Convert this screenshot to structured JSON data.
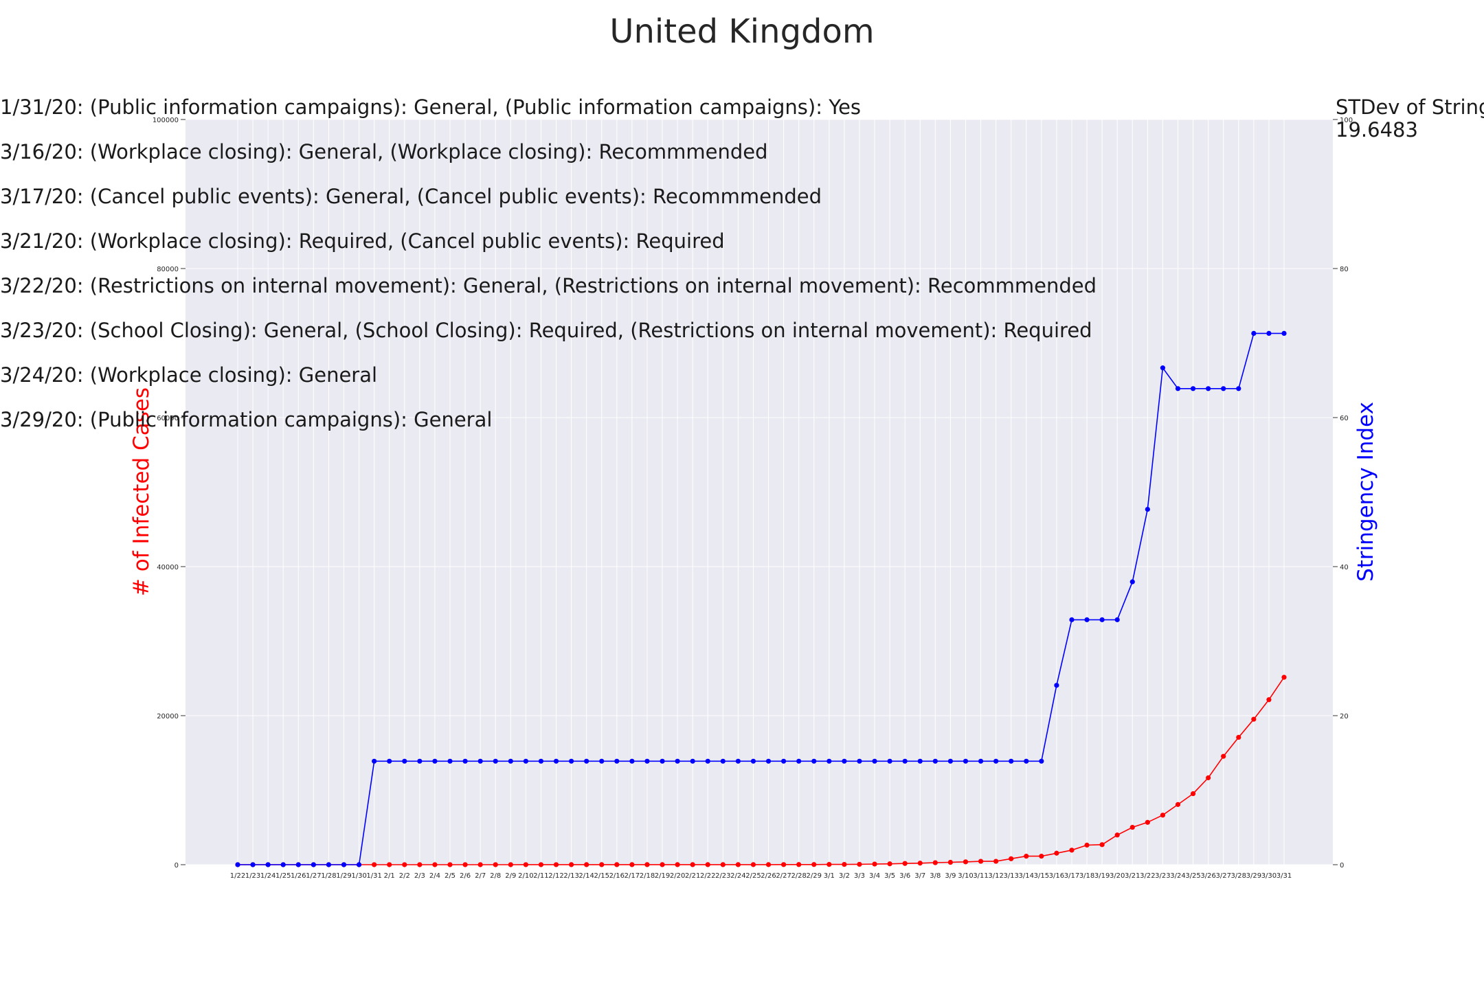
{
  "chart_data": {
    "type": "line",
    "title": "United Kingdom",
    "annotations": [
      "1/31/20: (Public information campaigns): General, (Public information campaigns): Yes",
      "3/16/20: (Workplace closing): General, (Workplace closing): Recommmended",
      "3/17/20: (Cancel public events): General, (Cancel public events): Recommmended",
      "3/21/20: (Workplace closing): Required, (Cancel public events): Required",
      "3/22/20: (Restrictions on internal movement): General, (Restrictions on internal movement): Recommmended",
      "3/23/20: (School Closing): General, (School Closing): Required, (Restrictions on internal movement): Required",
      "3/24/20: (Workplace closing): General",
      "3/29/20: (Public information campaigns): General"
    ],
    "stdev_label": "STDev of Stringency Index:",
    "stdev_value": "19.6483",
    "y_left": {
      "label": "# of Infected Cases",
      "ylim": [
        0,
        100000
      ],
      "ticks": [
        "0",
        "20000",
        "40000",
        "60000",
        "80000",
        "100000"
      ],
      "color": "#ff0000"
    },
    "y_right": {
      "label": "Stringency Index",
      "ylim": [
        0,
        100
      ],
      "ticks": [
        "0",
        "20",
        "40",
        "60",
        "80",
        "100"
      ],
      "color": "#0000ff"
    },
    "grid": true,
    "categories": [
      "1/22",
      "1/23",
      "1/24",
      "1/25",
      "1/26",
      "1/27",
      "1/28",
      "1/29",
      "1/30",
      "1/31",
      "2/1",
      "2/2",
      "2/3",
      "2/4",
      "2/5",
      "2/6",
      "2/7",
      "2/8",
      "2/9",
      "2/10",
      "2/11",
      "2/12",
      "2/13",
      "2/14",
      "2/15",
      "2/16",
      "2/17",
      "2/18",
      "2/19",
      "2/20",
      "2/21",
      "2/22",
      "2/23",
      "2/24",
      "2/25",
      "2/26",
      "2/27",
      "2/28",
      "2/29",
      "3/1",
      "3/2",
      "3/3",
      "3/4",
      "3/5",
      "3/6",
      "3/7",
      "3/8",
      "3/9",
      "3/10",
      "3/11",
      "3/12",
      "3/13",
      "3/14",
      "3/15",
      "3/16",
      "3/17",
      "3/18",
      "3/19",
      "3/20",
      "3/21",
      "3/22",
      "3/23",
      "3/24",
      "3/25",
      "3/26",
      "3/27",
      "3/28",
      "3/29",
      "3/30",
      "3/31"
    ],
    "series": [
      {
        "axis": "left",
        "color": "#ff0000",
        "values": [
          0,
          0,
          0,
          0,
          0,
          0,
          0,
          0,
          0,
          2,
          2,
          2,
          2,
          2,
          2,
          2,
          3,
          3,
          3,
          8,
          8,
          8,
          9,
          9,
          9,
          9,
          9,
          9,
          9,
          9,
          9,
          9,
          9,
          9,
          13,
          13,
          15,
          20,
          23,
          36,
          40,
          51,
          85,
          115,
          163,
          206,
          273,
          321,
          382,
          456,
          456,
          798,
          1140,
          1140,
          1543,
          1950,
          2626,
          2689,
          3983,
          5018,
          5683,
          6650,
          8077,
          9529,
          11658,
          14543,
          17089,
          19522,
          22141,
          25150
        ]
      },
      {
        "axis": "right",
        "color": "#0000ff",
        "values": [
          0,
          0,
          0,
          0,
          0,
          0,
          0,
          0,
          0,
          13.89,
          13.89,
          13.89,
          13.89,
          13.89,
          13.89,
          13.89,
          13.89,
          13.89,
          13.89,
          13.89,
          13.89,
          13.89,
          13.89,
          13.89,
          13.89,
          13.89,
          13.89,
          13.89,
          13.89,
          13.89,
          13.89,
          13.89,
          13.89,
          13.89,
          13.89,
          13.89,
          13.89,
          13.89,
          13.89,
          13.89,
          13.89,
          13.89,
          13.89,
          13.89,
          13.89,
          13.89,
          13.89,
          13.89,
          13.89,
          13.89,
          13.89,
          13.89,
          13.89,
          13.89,
          24.07,
          32.87,
          32.87,
          32.87,
          32.87,
          37.96,
          47.69,
          66.67,
          63.89,
          63.89,
          63.89,
          63.89,
          63.89,
          71.3,
          71.3,
          71.3
        ]
      }
    ]
  }
}
